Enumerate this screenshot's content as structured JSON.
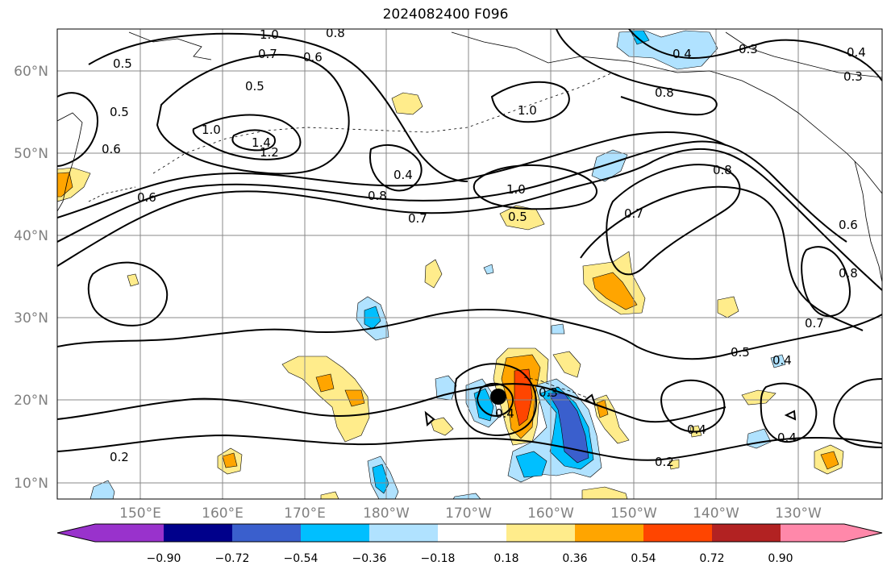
{
  "title": "2024082400 F096",
  "map": {
    "lon_ticks": [
      "150°E",
      "160°E",
      "170°E",
      "180°W",
      "170°W",
      "160°W",
      "150°W",
      "140°W",
      "130°W"
    ],
    "lat_ticks": [
      "10°N",
      "20°N",
      "30°N",
      "40°N",
      "50°N",
      "60°N"
    ],
    "lon_range": [
      140,
      242
    ],
    "lat_range": [
      8,
      65
    ],
    "grid": true,
    "marker": {
      "lon": 193.4,
      "lat": 20.3,
      "label": "storm-center"
    }
  },
  "contour_labels": [
    "1.0",
    "0.7",
    "0.6",
    "0.5",
    "1.0",
    "1.4",
    "1.2",
    "1.0",
    "0.8",
    "0.5",
    "0.6",
    "0.5",
    "0.6",
    "0.4",
    "0.8",
    "0.7",
    "0.5",
    "1.0",
    "0.8",
    "0.4",
    "0.3",
    "0.8",
    "0.7",
    "0.6",
    "0.8",
    "0.5",
    "0.7",
    "0.4",
    "0.4",
    "0.3",
    "0.4",
    "0.3",
    "0.2",
    "0.4",
    "0.4",
    "0.2"
  ],
  "colorbar": {
    "ticks": [
      "−0.90",
      "−0.72",
      "−0.54",
      "−0.36",
      "−0.18",
      "0.18",
      "0.36",
      "0.54",
      "0.72",
      "0.90"
    ],
    "colors": [
      "#9932CC",
      "#00008B",
      "#3A5FCD",
      "#00BFFF",
      "#B0E2FF",
      "#FFFFFF",
      "#FFEC8B",
      "#FFA500",
      "#FF4500",
      "#B22222",
      "#FF88AA"
    ]
  }
}
